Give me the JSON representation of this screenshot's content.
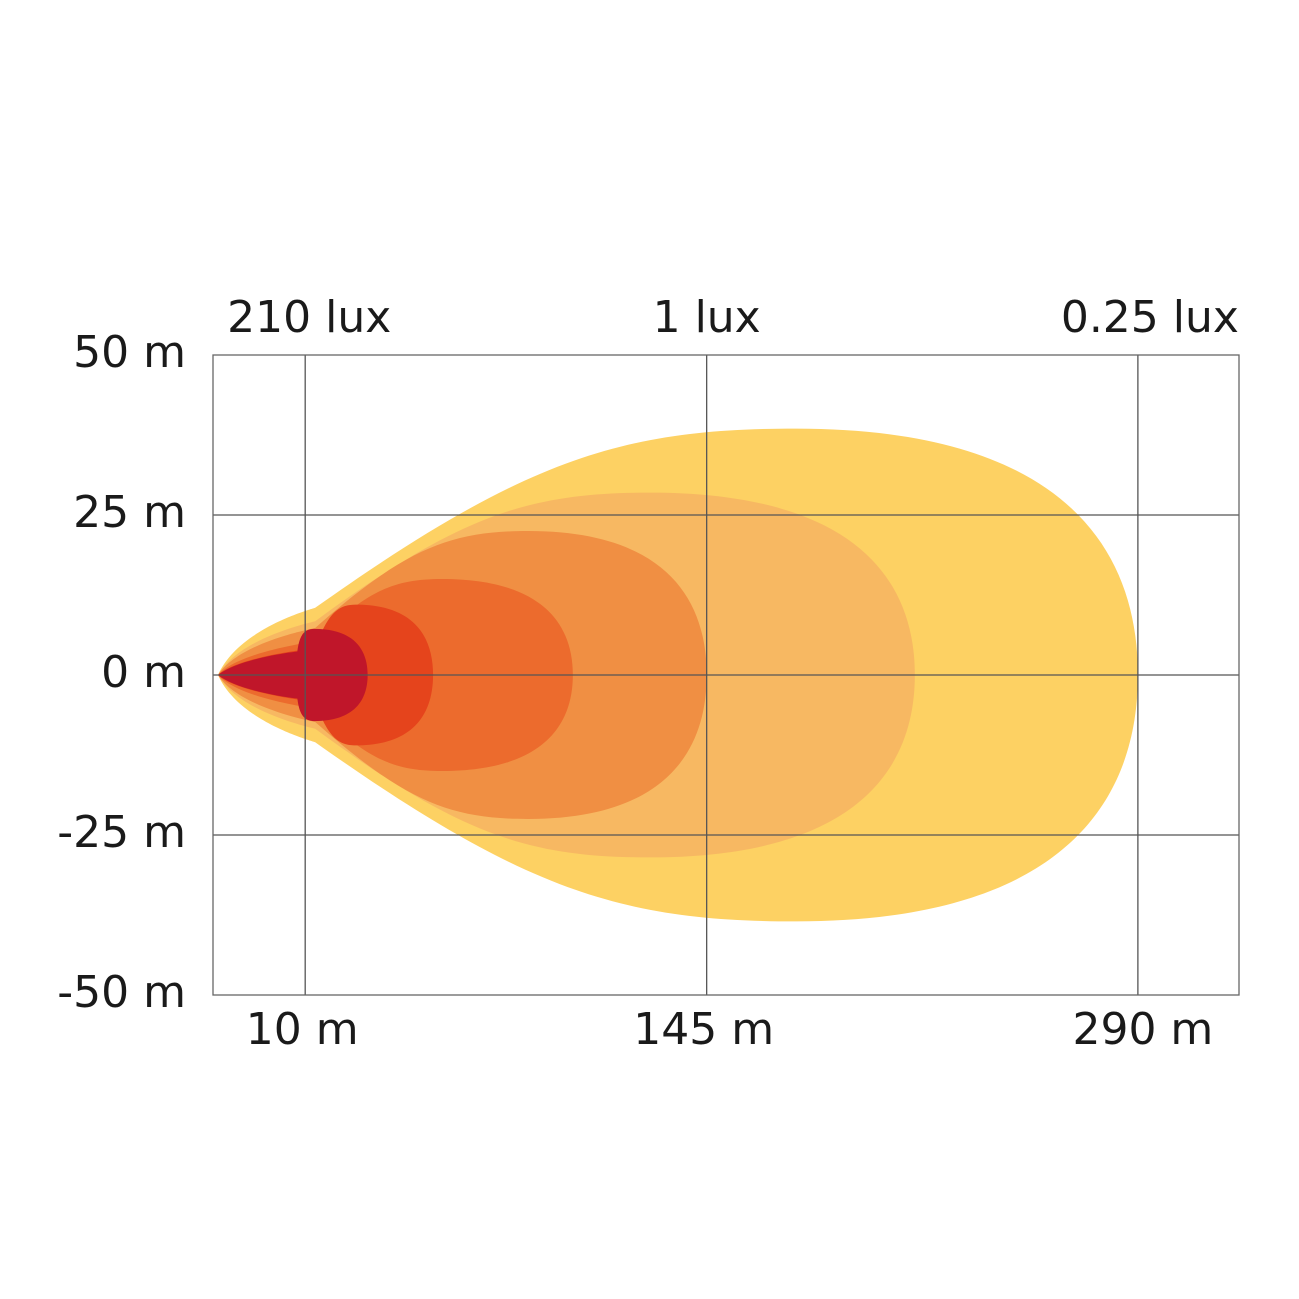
{
  "chart_data": {
    "type": "area",
    "title": "",
    "xlabel": "",
    "ylabel": "",
    "x_ticks": [
      {
        "label": "10 m",
        "value": 10
      },
      {
        "label": "145 m",
        "value": 145
      },
      {
        "label": "290 m",
        "value": 290
      }
    ],
    "y_ticks": [
      {
        "label": "50 m",
        "value": 50
      },
      {
        "label": "25 m",
        "value": 25
      },
      {
        "label": "0 m",
        "value": 0
      },
      {
        "label": "-25 m",
        "value": -25
      },
      {
        "label": "-50 m",
        "value": -50
      }
    ],
    "lux_labels": [
      {
        "label": "210 lux",
        "at_x": 10
      },
      {
        "label": "1 lux",
        "at_x": 145
      },
      {
        "label": "0.25 lux",
        "at_x": 290
      }
    ],
    "xlim": [
      -21,
      324
    ],
    "ylim": [
      -50,
      50
    ],
    "grid": true,
    "isolux_zones": [
      {
        "color": "#FDD163",
        "reach": 290,
        "peak_x": 175,
        "half_width": 38.5,
        "tip_half_width": 10,
        "tip_x": 10,
        "ctrl": [
          0.55,
          0.25,
          0.08
        ]
      },
      {
        "color": "#F7B862",
        "reach": 215,
        "peak_x": 126,
        "half_width": 28.5,
        "tip_half_width": 8,
        "tip_x": 10,
        "ctrl": [
          0.55,
          0.25,
          0.08
        ]
      },
      {
        "color": "#F08F43",
        "reach": 145,
        "peak_x": 85,
        "half_width": 22.5,
        "tip_half_width": 7,
        "tip_x": 10,
        "ctrl": [
          0.55,
          0.25,
          0.08
        ]
      },
      {
        "color": "#EC6B2D",
        "reach": 100,
        "peak_x": 56,
        "half_width": 15,
        "tip_half_width": 5,
        "tip_x": 10,
        "ctrl": [
          0.55,
          0.25,
          0.08
        ]
      },
      {
        "color": "#E5441C",
        "reach": 53,
        "peak_x": 27,
        "half_width": 11,
        "tip_half_width": 4,
        "tip_x": 10,
        "ctrl": [
          0.55,
          0.25,
          0.08
        ]
      },
      {
        "color": "#C0162A",
        "reach": 31,
        "peak_x": 13,
        "half_width": 7.2,
        "tip_half_width": 3.5,
        "tip_x": 4,
        "ctrl": [
          0.55,
          0.25,
          0.08
        ]
      }
    ]
  }
}
